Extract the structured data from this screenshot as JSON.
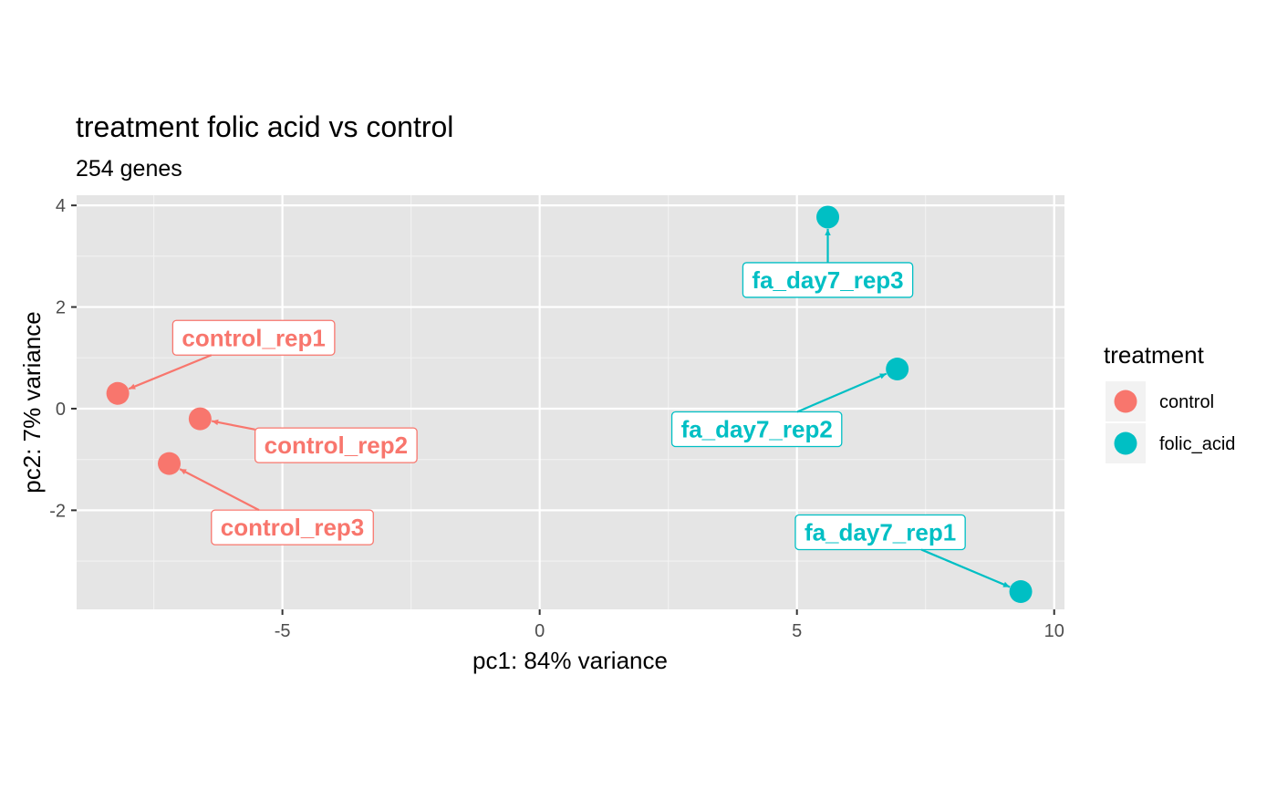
{
  "chart_data": {
    "type": "scatter",
    "title": "treatment folic acid vs control",
    "subtitle": "254 genes",
    "xlabel": "pc1: 84% variance",
    "ylabel": "pc2: 7% variance",
    "xlim": [
      -9.0,
      10.2
    ],
    "ylim": [
      -3.95,
      4.2
    ],
    "x_ticks": [
      -5,
      0,
      5,
      10
    ],
    "x_tick_labels": [
      "-5",
      "0",
      "5",
      "10"
    ],
    "y_ticks": [
      -2,
      0,
      2,
      4
    ],
    "y_tick_labels": [
      "-2",
      "0",
      "2",
      "4"
    ],
    "grid": true,
    "background": "#e5e5e5",
    "legend": {
      "title": "treatment",
      "placement": "right",
      "entries": [
        {
          "label": "control",
          "color": "#f8766d"
        },
        {
          "label": "folic_acid",
          "color": "#00bfc4"
        }
      ]
    },
    "series": [
      {
        "name": "control",
        "color": "#f8766d",
        "points": [
          {
            "label": "control_rep1",
            "x": -8.2,
            "y": 0.3
          },
          {
            "label": "control_rep2",
            "x": -6.6,
            "y": -0.2
          },
          {
            "label": "control_rep3",
            "x": -7.2,
            "y": -1.08
          }
        ]
      },
      {
        "name": "folic_acid",
        "color": "#00bfc4",
        "points": [
          {
            "label": "fa_day7_rep3",
            "x": 5.6,
            "y": 3.77
          },
          {
            "label": "fa_day7_rep2",
            "x": 6.95,
            "y": 0.78
          },
          {
            "label": "fa_day7_rep1",
            "x": 9.35,
            "y": -3.6
          }
        ]
      }
    ]
  }
}
